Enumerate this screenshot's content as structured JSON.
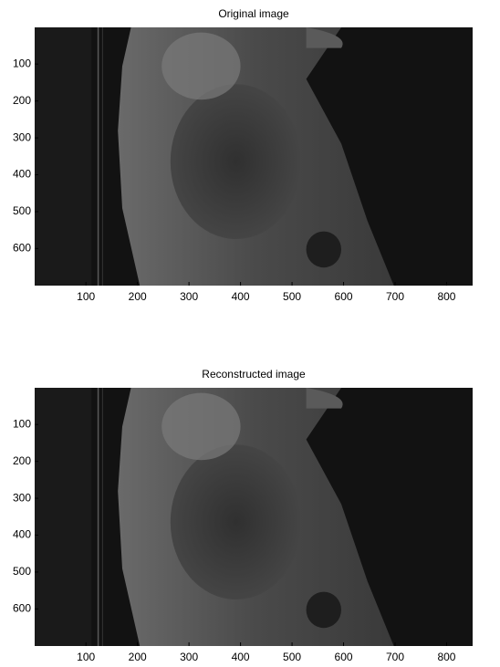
{
  "chart_data": [
    {
      "type": "image",
      "title": "Original image",
      "xlim": [
        0.5,
        850.5
      ],
      "ylim": [
        0.5,
        700.5
      ],
      "y_reversed": true,
      "xticks": [
        100,
        200,
        300,
        400,
        500,
        600,
        700,
        800
      ],
      "yticks": [
        100,
        200,
        300,
        400,
        500,
        600
      ]
    },
    {
      "type": "image",
      "title": "Reconstructed image",
      "xlim": [
        0.5,
        850.5
      ],
      "ylim": [
        0.5,
        700.5
      ],
      "y_reversed": true,
      "xticks": [
        100,
        200,
        300,
        400,
        500,
        600,
        700,
        800
      ],
      "yticks": [
        100,
        200,
        300,
        400,
        500,
        600
      ]
    }
  ]
}
